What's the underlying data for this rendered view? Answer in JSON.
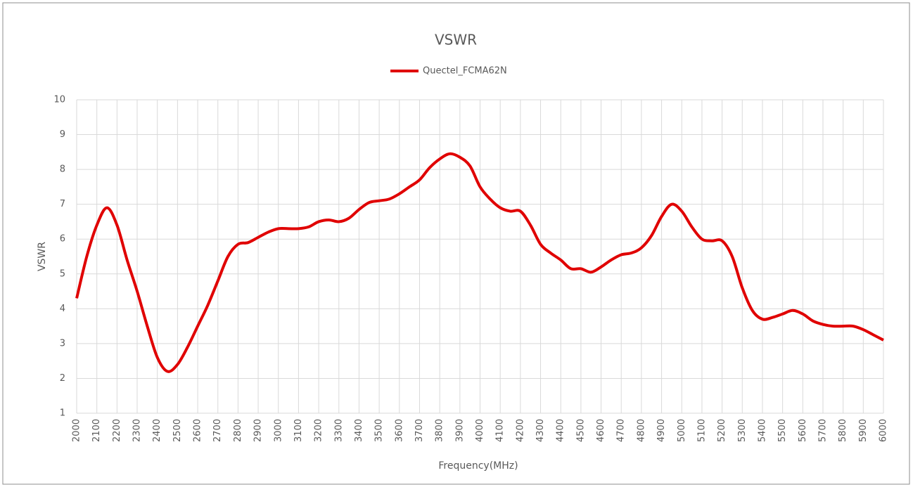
{
  "chart_data": {
    "type": "line",
    "title": "VSWR",
    "xlabel": "Frequency(MHz)",
    "ylabel": "VSWR",
    "x": [
      2000,
      2050,
      2100,
      2150,
      2200,
      2250,
      2300,
      2350,
      2400,
      2450,
      2500,
      2550,
      2600,
      2650,
      2700,
      2750,
      2800,
      2850,
      2900,
      2950,
      3000,
      3050,
      3100,
      3150,
      3200,
      3250,
      3300,
      3350,
      3400,
      3450,
      3500,
      3550,
      3600,
      3650,
      3700,
      3750,
      3800,
      3850,
      3900,
      3950,
      4000,
      4050,
      4100,
      4150,
      4200,
      4250,
      4300,
      4350,
      4400,
      4450,
      4500,
      4550,
      4600,
      4650,
      4700,
      4750,
      4800,
      4850,
      4900,
      4950,
      5000,
      5050,
      5100,
      5150,
      5200,
      5250,
      5300,
      5350,
      5400,
      5450,
      5500,
      5550,
      5600,
      5650,
      5700,
      5750,
      5800,
      5850,
      5900,
      5950,
      6000
    ],
    "series": [
      {
        "name": "Quectel_FCMA62N",
        "color": "#e00000",
        "values": [
          4.3,
          5.5,
          6.4,
          6.9,
          6.4,
          5.4,
          4.5,
          3.5,
          2.6,
          2.2,
          2.4,
          2.9,
          3.5,
          4.1,
          4.8,
          5.5,
          5.85,
          5.9,
          6.05,
          6.2,
          6.3,
          6.3,
          6.3,
          6.35,
          6.5,
          6.55,
          6.5,
          6.6,
          6.85,
          7.05,
          7.1,
          7.15,
          7.3,
          7.5,
          7.7,
          8.05,
          8.3,
          8.45,
          8.35,
          8.1,
          7.5,
          7.15,
          6.9,
          6.8,
          6.8,
          6.4,
          5.85,
          5.6,
          5.4,
          5.15,
          5.15,
          5.05,
          5.2,
          5.4,
          5.55,
          5.6,
          5.75,
          6.1,
          6.65,
          7.0,
          6.8,
          6.35,
          6.0,
          5.95,
          5.95,
          5.5,
          4.6,
          3.95,
          3.7,
          3.75,
          3.85,
          3.95,
          3.85,
          3.65,
          3.55,
          3.5,
          3.5,
          3.5,
          3.4,
          3.25,
          3.1
        ]
      }
    ],
    "xlim": [
      2000,
      6000
    ],
    "xticks": [
      2000,
      2100,
      2200,
      2300,
      2400,
      2500,
      2600,
      2700,
      2800,
      2900,
      3000,
      3100,
      3200,
      3300,
      3400,
      3500,
      3600,
      3700,
      3800,
      3900,
      4000,
      4100,
      4200,
      4300,
      4400,
      4500,
      4600,
      4700,
      4800,
      4900,
      5000,
      5100,
      5200,
      5300,
      5400,
      5500,
      5600,
      5700,
      5800,
      5900,
      6000
    ],
    "ylim": [
      1,
      10
    ],
    "yticks": [
      1,
      2,
      3,
      4,
      5,
      6,
      7,
      8,
      9,
      10
    ],
    "grid": true,
    "legend": "top"
  }
}
